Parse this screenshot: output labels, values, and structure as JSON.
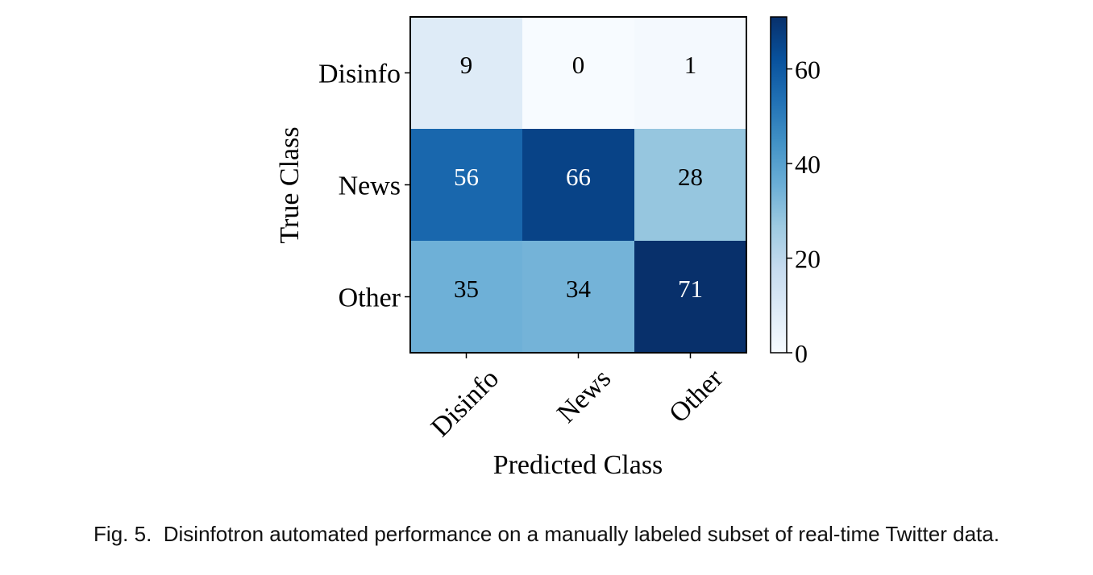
{
  "chart_data": {
    "type": "heatmap",
    "title": "",
    "xlabel": "Predicted Class",
    "ylabel": "True Class",
    "x_categories": [
      "Disinfo",
      "News",
      "Other"
    ],
    "y_categories": [
      "Disinfo",
      "News",
      "Other"
    ],
    "matrix": [
      [
        9,
        0,
        1
      ],
      [
        56,
        66,
        28
      ],
      [
        35,
        34,
        71
      ]
    ],
    "colorbar": {
      "min": 0,
      "max": 71,
      "ticks": [
        0,
        20,
        40,
        60
      ],
      "colormap": "Blues"
    }
  },
  "caption": {
    "label": "Fig. 5.",
    "text": "Disinfotron automated performance on a manually labeled subset of real-time Twitter data."
  }
}
